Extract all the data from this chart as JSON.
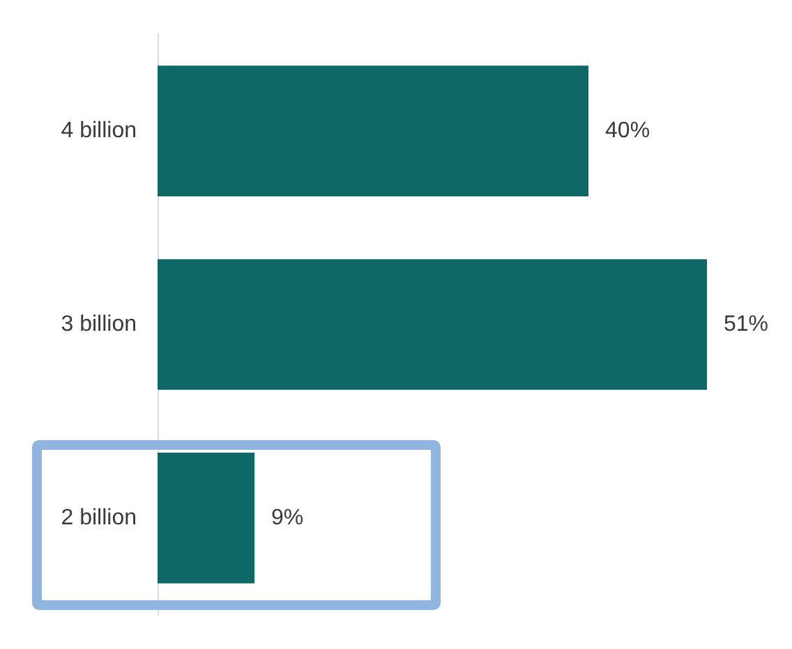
{
  "chart_data": {
    "type": "bar",
    "orientation": "horizontal",
    "categories": [
      "4 billion",
      "3 billion",
      "2 billion"
    ],
    "values": [
      40,
      51,
      9
    ],
    "color": "#0e6866",
    "value_labels": [
      "40%",
      "51%",
      "9%"
    ],
    "tick_labels": "y"
  }
}
